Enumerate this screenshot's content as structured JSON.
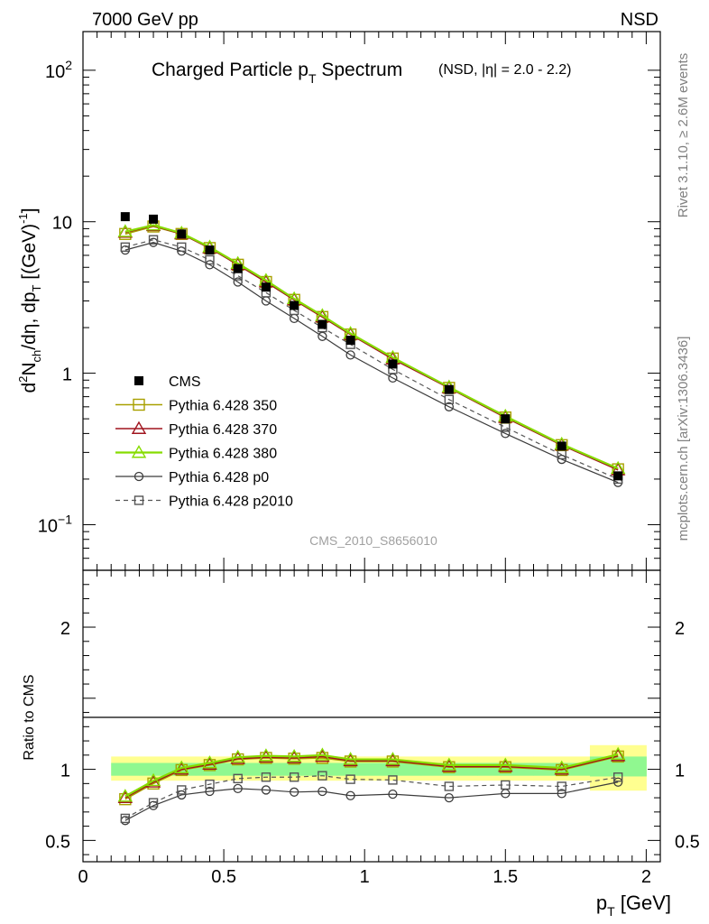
{
  "header": {
    "left": "7000 GeV pp",
    "right": "NSD"
  },
  "side": {
    "rivet": "Rivet 3.1.10, ≥ 2.6M events",
    "mcplots": "mcplots.cern.ch [arXiv:1306.3436]"
  },
  "title": {
    "main": "Charged Particle p",
    "main_sub": "T",
    "main_tail": " Spectrum",
    "sel": "(NSD, |η| = 2.0 - 2.2)"
  },
  "ylabel_top": {
    "p1": "d",
    "p2": "2",
    "p3": "N",
    "p4": "ch",
    "p5": "/dη, dp",
    "p6": "T",
    "p7": " [(GeV)",
    "p8": "-1",
    "p9": "]"
  },
  "ylabel_bottom": "Ratio to CMS",
  "xlabel": {
    "main": "p",
    "sub": "T",
    "unit": " [GeV]"
  },
  "analysis_tag": "CMS_2010_S8656010",
  "colors": {
    "p350": "#a8a000",
    "p370": "#a0141e",
    "p380": "#86dc00",
    "p0": "#3c3c3c",
    "p2010": "#555555",
    "band_inner": "#90f890",
    "band_outer": "#ffff90"
  },
  "chart_data": [
    {
      "type": "line",
      "y_scale": "log",
      "xlim": [
        0,
        2.05
      ],
      "ylim": [
        0.05,
        180
      ],
      "yticks": [
        {
          "v": 100,
          "base": "10",
          "exp": "2"
        },
        {
          "v": 10,
          "base": "10",
          "exp": ""
        },
        {
          "v": 1,
          "base": "1",
          "exp": ""
        },
        {
          "v": 0.1,
          "base": "10",
          "exp": "−1"
        }
      ],
      "x": [
        0.15,
        0.25,
        0.35,
        0.45,
        0.55,
        0.65,
        0.75,
        0.85,
        0.95,
        1.1,
        1.3,
        1.5,
        1.7,
        1.9
      ],
      "cms": [
        10.8,
        10.4,
        8.3,
        6.5,
        4.9,
        3.7,
        2.8,
        2.1,
        1.65,
        1.15,
        0.78,
        0.5,
        0.33,
        0.21
      ],
      "series": [
        {
          "name": "CMS",
          "key": "cms"
        },
        {
          "name": "Pythia 6.428 350",
          "key": "p350",
          "values": [
            8.3,
            9.3,
            8.3,
            6.7,
            5.2,
            4.0,
            3.05,
            2.35,
            1.8,
            1.25,
            0.8,
            0.51,
            0.335,
            0.232
          ]
        },
        {
          "name": "Pythia 6.428 370",
          "key": "p370",
          "values": [
            8.5,
            9.4,
            8.3,
            6.7,
            5.2,
            4.0,
            3.05,
            2.35,
            1.8,
            1.24,
            0.8,
            0.51,
            0.335,
            0.23
          ]
        },
        {
          "name": "Pythia 6.428 380",
          "key": "p380",
          "values": [
            8.6,
            9.5,
            8.4,
            6.8,
            5.3,
            4.1,
            3.1,
            2.4,
            1.83,
            1.27,
            0.81,
            0.52,
            0.34,
            0.235
          ]
        },
        {
          "name": "Pythia 6.428 p0",
          "key": "p0",
          "values": [
            6.5,
            7.3,
            6.4,
            5.2,
            4.0,
            3.0,
            2.3,
            1.75,
            1.32,
            0.93,
            0.6,
            0.4,
            0.27,
            0.19
          ]
        },
        {
          "name": "Pythia 6.428 p2010",
          "key": "p2010",
          "values": [
            6.8,
            7.6,
            6.8,
            5.6,
            4.4,
            3.4,
            2.6,
            2.0,
            1.55,
            1.06,
            0.67,
            0.44,
            0.29,
            0.2
          ]
        }
      ]
    },
    {
      "type": "line",
      "ylabel": "Ratio to CMS",
      "xlabel": "p_T [GeV]",
      "xlim": [
        0,
        2.05
      ],
      "ylim": [
        0.35,
        2.4
      ],
      "yticks": [
        0.5,
        1,
        2
      ],
      "ytick_labels": [
        "0.5",
        "1",
        "2"
      ],
      "xticks": [
        0,
        0.5,
        1,
        1.5,
        2
      ],
      "xtick_labels": [
        "0",
        "0.5",
        "1",
        "1.5",
        "2"
      ],
      "x": [
        0.15,
        0.25,
        0.35,
        0.45,
        0.55,
        0.65,
        0.75,
        0.85,
        0.95,
        1.1,
        1.3,
        1.5,
        1.7,
        1.9
      ],
      "bins": [
        [
          0.1,
          0.2
        ],
        [
          0.2,
          0.3
        ],
        [
          0.3,
          0.4
        ],
        [
          0.4,
          0.5
        ],
        [
          0.5,
          0.6
        ],
        [
          0.6,
          0.7
        ],
        [
          0.7,
          0.8
        ],
        [
          0.8,
          0.9
        ],
        [
          0.9,
          1.0
        ],
        [
          1.0,
          1.2
        ],
        [
          1.2,
          1.4
        ],
        [
          1.4,
          1.6
        ],
        [
          1.6,
          1.8
        ],
        [
          1.8,
          2.0
        ]
      ],
      "band_inner": [
        [
          0.955,
          1.045
        ],
        [
          0.955,
          1.045
        ],
        [
          0.955,
          1.045
        ],
        [
          0.955,
          1.045
        ],
        [
          0.955,
          1.045
        ],
        [
          0.955,
          1.045
        ],
        [
          0.955,
          1.045
        ],
        [
          0.955,
          1.045
        ],
        [
          0.955,
          1.045
        ],
        [
          0.955,
          1.045
        ],
        [
          0.955,
          1.045
        ],
        [
          0.955,
          1.045
        ],
        [
          0.955,
          1.045
        ],
        [
          0.95,
          1.09
        ]
      ],
      "band_outer": [
        [
          0.92,
          1.09
        ],
        [
          0.92,
          1.09
        ],
        [
          0.92,
          1.09
        ],
        [
          0.92,
          1.09
        ],
        [
          0.92,
          1.09
        ],
        [
          0.92,
          1.09
        ],
        [
          0.92,
          1.09
        ],
        [
          0.92,
          1.09
        ],
        [
          0.92,
          1.09
        ],
        [
          0.92,
          1.09
        ],
        [
          0.92,
          1.09
        ],
        [
          0.92,
          1.09
        ],
        [
          0.92,
          1.09
        ],
        [
          0.85,
          1.17
        ]
      ],
      "series": [
        {
          "name": "Pythia 6.428 350",
          "key": "p350",
          "values": [
            0.79,
            0.9,
            0.995,
            1.03,
            1.07,
            1.08,
            1.075,
            1.08,
            1.055,
            1.055,
            1.015,
            1.015,
            0.995,
            1.09
          ]
        },
        {
          "name": "Pythia 6.428 370",
          "key": "p370",
          "values": [
            0.8,
            0.91,
            1.0,
            1.035,
            1.075,
            1.085,
            1.08,
            1.09,
            1.06,
            1.06,
            1.02,
            1.02,
            1.0,
            1.095
          ]
        },
        {
          "name": "Pythia 6.428 380",
          "key": "p380",
          "values": [
            0.81,
            0.92,
            1.01,
            1.045,
            1.085,
            1.095,
            1.09,
            1.1,
            1.07,
            1.07,
            1.03,
            1.03,
            1.01,
            1.105
          ]
        },
        {
          "name": "Pythia 6.428 p0",
          "key": "p0",
          "values": [
            0.64,
            0.745,
            0.82,
            0.845,
            0.865,
            0.855,
            0.84,
            0.845,
            0.815,
            0.825,
            0.8,
            0.83,
            0.83,
            0.91
          ]
        },
        {
          "name": "Pythia 6.428 p2010",
          "key": "p2010",
          "values": [
            0.655,
            0.765,
            0.855,
            0.895,
            0.935,
            0.945,
            0.945,
            0.955,
            0.93,
            0.925,
            0.88,
            0.89,
            0.88,
            0.945
          ]
        }
      ]
    }
  ]
}
